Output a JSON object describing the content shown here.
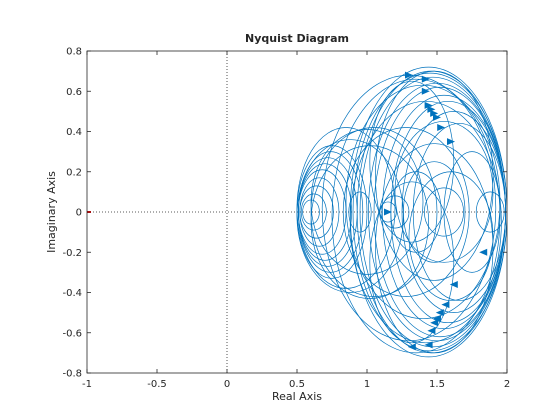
{
  "chart_data": {
    "type": "line",
    "title": "Nyquist Diagram",
    "xlabel": "Real Axis",
    "ylabel": "Imaginary Axis",
    "xlim": [
      -1,
      2
    ],
    "ylim": [
      -0.8,
      0.8
    ],
    "xticks": [
      -1,
      -0.5,
      0,
      0.5,
      1,
      1.5,
      2
    ],
    "xtick_labels": [
      "-1",
      "-0.5",
      "0",
      "0.5",
      "1",
      "1.5",
      "2"
    ],
    "yticks": [
      -0.8,
      -0.6,
      -0.4,
      -0.2,
      0,
      0.2,
      0.4,
      0.6,
      0.8
    ],
    "ytick_labels": [
      "-0.8",
      "-0.6",
      "-0.4",
      "-0.2",
      "0",
      "0.2",
      "0.4",
      "0.6",
      "0.8"
    ],
    "grid": false,
    "reference_lines": {
      "x": 0,
      "y": 0,
      "style": "dotted"
    },
    "critical_point": {
      "x": -1,
      "y": 0,
      "color": "#ff0000"
    },
    "series_color": "#0072bd",
    "loops": [
      {
        "cx": 1.46,
        "cy": 0.0,
        "rx": 0.53,
        "ry": 0.7
      },
      {
        "cx": 1.45,
        "cy": 0.0,
        "rx": 0.55,
        "ry": 0.69
      },
      {
        "cx": 1.44,
        "cy": 0.0,
        "rx": 0.56,
        "ry": 0.72
      },
      {
        "cx": 1.47,
        "cy": 0.0,
        "rx": 0.52,
        "ry": 0.67
      },
      {
        "cx": 1.5,
        "cy": 0.0,
        "rx": 0.49,
        "ry": 0.64
      },
      {
        "cx": 1.52,
        "cy": 0.0,
        "rx": 0.47,
        "ry": 0.62
      },
      {
        "cx": 1.55,
        "cy": 0.0,
        "rx": 0.44,
        "ry": 0.58
      },
      {
        "cx": 1.58,
        "cy": 0.0,
        "rx": 0.41,
        "ry": 0.55
      },
      {
        "cx": 1.62,
        "cy": 0.0,
        "rx": 0.37,
        "ry": 0.5
      },
      {
        "cx": 1.66,
        "cy": 0.0,
        "rx": 0.33,
        "ry": 0.44
      },
      {
        "cx": 1.4,
        "cy": 0.05,
        "rx": 0.55,
        "ry": 0.58
      },
      {
        "cx": 1.42,
        "cy": -0.05,
        "rx": 0.54,
        "ry": 0.6
      },
      {
        "cx": 1.3,
        "cy": 0.02,
        "rx": 0.62,
        "ry": 0.66
      },
      {
        "cx": 1.35,
        "cy": -0.02,
        "rx": 0.6,
        "ry": 0.68
      },
      {
        "cx": 1.28,
        "cy": 0.0,
        "rx": 0.45,
        "ry": 0.42
      },
      {
        "cx": 1.55,
        "cy": 0.1,
        "rx": 0.35,
        "ry": 0.35
      },
      {
        "cx": 1.6,
        "cy": -0.12,
        "rx": 0.3,
        "ry": 0.32
      },
      {
        "cx": 1.48,
        "cy": 0.0,
        "rx": 0.22,
        "ry": 0.25
      },
      {
        "cx": 1.75,
        "cy": 0.0,
        "rx": 0.2,
        "ry": 0.3
      },
      {
        "cx": 1.88,
        "cy": 0.0,
        "rx": 0.1,
        "ry": 0.1
      },
      {
        "cx": 1.2,
        "cy": 0.0,
        "rx": 0.1,
        "ry": 0.08
      },
      {
        "cx": 1.15,
        "cy": 0.0,
        "rx": 0.06,
        "ry": 0.05
      },
      {
        "cx": 1.35,
        "cy": 0.0,
        "rx": 0.18,
        "ry": 0.2
      },
      {
        "cx": 1.55,
        "cy": 0.0,
        "rx": 0.14,
        "ry": 0.12
      },
      {
        "cx": 0.75,
        "cy": 0.0,
        "rx": 0.25,
        "ry": 0.33
      },
      {
        "cx": 0.74,
        "cy": 0.0,
        "rx": 0.23,
        "ry": 0.3
      },
      {
        "cx": 0.72,
        "cy": 0.0,
        "rx": 0.21,
        "ry": 0.27
      },
      {
        "cx": 0.7,
        "cy": 0.0,
        "rx": 0.19,
        "ry": 0.24
      },
      {
        "cx": 0.68,
        "cy": 0.0,
        "rx": 0.17,
        "ry": 0.21
      },
      {
        "cx": 0.66,
        "cy": 0.0,
        "rx": 0.14,
        "ry": 0.17
      },
      {
        "cx": 0.64,
        "cy": 0.0,
        "rx": 0.12,
        "ry": 0.13
      },
      {
        "cx": 0.62,
        "cy": 0.0,
        "rx": 0.09,
        "ry": 0.09
      },
      {
        "cx": 0.6,
        "cy": 0.0,
        "rx": 0.06,
        "ry": 0.06
      },
      {
        "cx": 0.85,
        "cy": 0.02,
        "rx": 0.35,
        "ry": 0.4
      },
      {
        "cx": 0.88,
        "cy": -0.02,
        "rx": 0.38,
        "ry": 0.38
      },
      {
        "cx": 1.05,
        "cy": 0.0,
        "rx": 0.45,
        "ry": 0.42
      },
      {
        "cx": 1.0,
        "cy": 0.05,
        "rx": 0.4,
        "ry": 0.36
      },
      {
        "cx": 1.02,
        "cy": -0.05,
        "rx": 0.42,
        "ry": 0.38
      },
      {
        "cx": 0.95,
        "cy": 0.0,
        "rx": 0.08,
        "ry": 0.1
      },
      {
        "cx": 1.48,
        "cy": 0.18,
        "rx": 0.42,
        "ry": 0.52
      },
      {
        "cx": 1.48,
        "cy": -0.18,
        "rx": 0.42,
        "ry": 0.52
      },
      {
        "cx": 1.32,
        "cy": 0.25,
        "rx": 0.3,
        "ry": 0.4
      },
      {
        "cx": 1.32,
        "cy": -0.25,
        "rx": 0.3,
        "ry": 0.4
      }
    ],
    "arrows": [
      {
        "x": 1.3,
        "y": 0.68,
        "dir": "right"
      },
      {
        "x": 1.42,
        "y": 0.66,
        "dir": "right"
      },
      {
        "x": 1.42,
        "y": 0.6,
        "dir": "right"
      },
      {
        "x": 1.44,
        "y": 0.53,
        "dir": "right"
      },
      {
        "x": 1.46,
        "y": 0.51,
        "dir": "right"
      },
      {
        "x": 1.48,
        "y": 0.49,
        "dir": "right"
      },
      {
        "x": 1.5,
        "y": 0.47,
        "dir": "right"
      },
      {
        "x": 1.53,
        "y": 0.42,
        "dir": "right"
      },
      {
        "x": 1.6,
        "y": 0.35,
        "dir": "right"
      },
      {
        "x": 1.83,
        "y": -0.2,
        "dir": "left"
      },
      {
        "x": 1.62,
        "y": -0.36,
        "dir": "left"
      },
      {
        "x": 1.56,
        "y": -0.46,
        "dir": "left"
      },
      {
        "x": 1.52,
        "y": -0.5,
        "dir": "left"
      },
      {
        "x": 1.5,
        "y": -0.53,
        "dir": "left"
      },
      {
        "x": 1.48,
        "y": -0.55,
        "dir": "left"
      },
      {
        "x": 1.46,
        "y": -0.59,
        "dir": "left"
      },
      {
        "x": 1.44,
        "y": -0.66,
        "dir": "left"
      },
      {
        "x": 1.32,
        "y": -0.67,
        "dir": "left"
      },
      {
        "x": 1.15,
        "y": 0.0,
        "dir": "right"
      }
    ]
  }
}
